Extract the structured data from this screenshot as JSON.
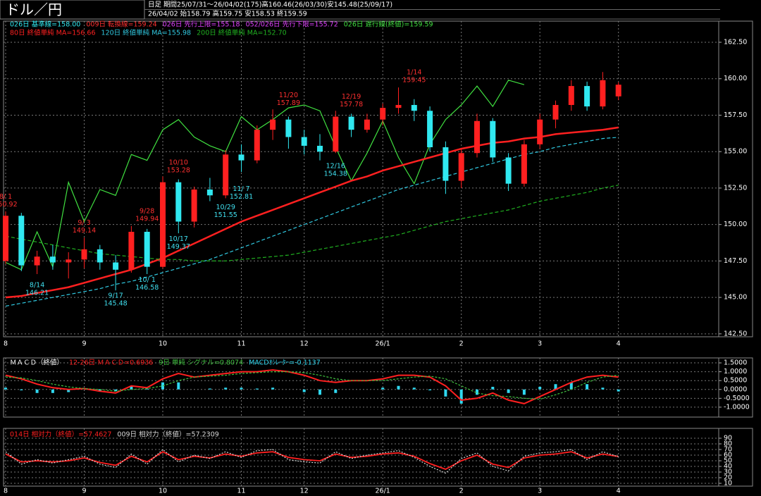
{
  "header": {
    "title": "ドル／円",
    "period": "日足  期間25/07/31～26/04/02(175)高160.46(26/03/30)安145.48(25/09/17)",
    "latest": "26/04/02  始158.79 高159.75 安158.53 終159.59"
  },
  "chart_data": [
    {
      "type": "candlestick",
      "up_color": "#ff2020",
      "down_color": "#30e8f0",
      "categories": [
        "8",
        null,
        null,
        null,
        null,
        "9",
        null,
        null,
        null,
        null,
        "10",
        null,
        null,
        null,
        null,
        "11",
        null,
        null,
        null,
        "12",
        null,
        null,
        null,
        null,
        "26/1",
        null,
        null,
        null,
        null,
        "2",
        null,
        null,
        null,
        null,
        "3",
        null,
        null,
        null,
        null,
        "4"
      ],
      "open": [
        147.5,
        150.6,
        147.2,
        147.8,
        147.4,
        147.6,
        148.3,
        147.4,
        146.9,
        149.5,
        147.1,
        152.9,
        150.2,
        152.4,
        152.0,
        154.8,
        154.4,
        156.5,
        157.2,
        156.0,
        155.4,
        155.0,
        157.4,
        156.5,
        157.2,
        158.0,
        158.2,
        157.8,
        155.3,
        153.0,
        154.9,
        157.1,
        154.6,
        152.8,
        155.5,
        157.2,
        158.2,
        159.5,
        158.1,
        158.79
      ],
      "high": [
        150.9,
        150.8,
        148.2,
        148.6,
        148.1,
        149.1,
        148.6,
        147.9,
        149.9,
        149.7,
        153.3,
        153.1,
        152.6,
        153.2,
        155.1,
        155.5,
        156.8,
        157.9,
        157.4,
        156.5,
        156.2,
        157.8,
        157.6,
        157.6,
        158.3,
        159.4,
        158.6,
        158.1,
        155.7,
        155.2,
        157.6,
        157.3,
        154.9,
        155.8,
        157.6,
        158.5,
        159.9,
        159.8,
        160.46,
        159.75
      ],
      "low": [
        147.3,
        146.8,
        146.6,
        146.9,
        146.3,
        147.0,
        146.9,
        145.48,
        146.7,
        146.6,
        147.0,
        149.4,
        149.8,
        151.6,
        151.8,
        153.6,
        154.2,
        155.8,
        155.2,
        154.8,
        154.4,
        154.9,
        156.0,
        156.3,
        156.8,
        157.6,
        157.1,
        155.0,
        152.1,
        152.5,
        154.6,
        154.3,
        152.3,
        152.6,
        155.2,
        156.6,
        157.8,
        157.8,
        157.9,
        158.53
      ],
      "close": [
        150.6,
        147.2,
        147.8,
        147.4,
        147.6,
        148.3,
        147.4,
        146.9,
        149.5,
        147.1,
        152.9,
        150.2,
        152.4,
        152.0,
        154.8,
        154.4,
        156.5,
        157.2,
        156.0,
        155.4,
        155.0,
        157.4,
        156.5,
        157.2,
        158.0,
        158.2,
        157.8,
        155.3,
        153.0,
        154.9,
        157.1,
        154.6,
        152.8,
        155.5,
        157.2,
        158.2,
        159.5,
        158.1,
        159.9,
        159.59
      ],
      "indicator_labels": [
        {
          "label": "026日 基準線=158.00",
          "color": "#30e8f0"
        },
        {
          "label": "009日 転換線=159.24",
          "color": "#ff3030"
        },
        {
          "label": "026日 先行上限=155.18",
          "color": "#e040ff"
        },
        {
          "label": "052/026日 先行下限=155.72",
          "color": "#e040ff"
        }
      ],
      "series": [
        {
          "name": "026日 遅行線(終値)=159.59",
          "color": "#40e040",
          "legend_row": 1,
          "values": [
            147.4,
            146.9,
            149.5,
            147.1,
            152.9,
            150.2,
            152.4,
            152.0,
            154.8,
            154.4,
            156.5,
            157.2,
            156.0,
            155.4,
            155.0,
            157.4,
            156.5,
            157.2,
            158.0,
            158.2,
            157.8,
            155.3,
            153.0,
            154.9,
            157.1,
            154.6,
            152.8,
            155.5,
            157.2,
            158.2,
            159.5,
            158.1,
            159.9,
            159.59,
            null,
            null,
            null,
            null,
            null,
            null
          ]
        },
        {
          "name": "80日 終値単純 MA=156.66",
          "color": "#ff2020",
          "width": 2.5,
          "legend_row": 2,
          "values": [
            145.0,
            145.1,
            145.3,
            145.5,
            145.7,
            146.0,
            146.3,
            146.6,
            146.9,
            147.3,
            147.7,
            148.2,
            148.7,
            149.2,
            149.7,
            150.2,
            150.6,
            151.0,
            151.4,
            151.8,
            152.2,
            152.6,
            153.0,
            153.3,
            153.7,
            154.0,
            154.3,
            154.6,
            154.9,
            155.2,
            155.4,
            155.6,
            155.7,
            155.9,
            156.0,
            156.2,
            156.3,
            156.4,
            156.5,
            156.66
          ]
        },
        {
          "name": "120日 終値単純 MA=155.98",
          "color": "#30c8e0",
          "dash": "5,3",
          "legend_row": 2,
          "values": [
            144.4,
            144.6,
            144.8,
            145.0,
            145.2,
            145.4,
            145.6,
            145.9,
            146.1,
            146.4,
            146.7,
            147.0,
            147.3,
            147.6,
            148.0,
            148.4,
            148.8,
            149.2,
            149.6,
            150.0,
            150.4,
            150.8,
            151.2,
            151.6,
            152.0,
            152.4,
            152.7,
            153.0,
            153.3,
            153.6,
            153.9,
            154.2,
            154.5,
            154.8,
            155.0,
            155.3,
            155.5,
            155.7,
            155.9,
            155.98
          ]
        },
        {
          "name": "200日 終値単純 MA=152.70",
          "color": "#20b020",
          "dash": "5,3",
          "legend_row": 2,
          "values": [
            149.2,
            149.0,
            148.8,
            148.6,
            148.4,
            148.2,
            148.0,
            147.9,
            147.8,
            147.7,
            147.6,
            147.6,
            147.5,
            147.5,
            147.5,
            147.6,
            147.7,
            147.8,
            147.9,
            148.1,
            148.3,
            148.5,
            148.7,
            148.9,
            149.1,
            149.3,
            149.6,
            149.9,
            150.2,
            150.4,
            150.6,
            150.8,
            151.0,
            151.3,
            151.6,
            151.8,
            152.0,
            152.2,
            152.5,
            152.7
          ]
        }
      ],
      "high_labels": {
        "color": "#ff3030",
        "items": [
          {
            "date": "8/ 1",
            "value": 150.92
          },
          {
            "date": "9/ 3",
            "value": 149.14
          },
          {
            "date": "9/28",
            "value": 149.94
          },
          {
            "date": "10/10",
            "value": 153.28
          },
          {
            "date": "11/20",
            "value": 157.89
          },
          {
            "date": "12/19",
            "value": 157.78
          },
          {
            "date": "1/14",
            "value": 159.45
          }
        ]
      },
      "low_labels": {
        "color": "#40e0f0",
        "items": [
          {
            "date": "8/14",
            "value": 146.21
          },
          {
            "date": "9/17",
            "value": 145.48
          },
          {
            "date": "10/ 1",
            "value": 146.58
          },
          {
            "date": "10/17",
            "value": 149.37
          },
          {
            "date": "10/29",
            "value": 151.55
          },
          {
            "date": "11/ 7",
            "value": 152.81
          },
          {
            "date": "12/16",
            "value": 154.38
          }
        ]
      },
      "ylim": [
        142.3,
        163.95
      ],
      "yticks": [
        {
          "value": 142.5,
          "label": "142.50"
        },
        {
          "value": 145,
          "label": "145.00"
        },
        {
          "value": 147.5,
          "label": "147.50"
        },
        {
          "value": 150,
          "label": "150.00"
        },
        {
          "value": 152.5,
          "label": "152.50"
        },
        {
          "value": 155,
          "label": "155.00"
        },
        {
          "value": 157.5,
          "label": "157.50"
        },
        {
          "value": 160,
          "label": "160.00"
        },
        {
          "value": 162.5,
          "label": "162.50"
        }
      ],
      "grid": true
    },
    {
      "type": "macd",
      "title": "ＭＡＣＤ（終値）",
      "series": [
        {
          "name": "12-26日 ＭＡＣＤ=0.6936",
          "color": "#ff2020",
          "width": 2,
          "values": [
            0.8,
            0.6,
            0.3,
            0.1,
            0.0,
            0.05,
            -0.1,
            -0.2,
            0.2,
            0.1,
            0.6,
            0.9,
            0.7,
            0.8,
            0.9,
            1.0,
            1.0,
            1.1,
            1.0,
            0.8,
            0.5,
            0.4,
            0.5,
            0.5,
            0.6,
            0.8,
            0.8,
            0.7,
            0.2,
            -0.6,
            -0.5,
            -0.2,
            -0.6,
            -0.8,
            -0.4,
            0.0,
            0.4,
            0.7,
            0.8,
            0.6936
          ]
        },
        {
          "name": "9日 単純 シグナル=0.8074",
          "color": "#40c040",
          "dash": "3,2",
          "values": [
            0.7,
            0.65,
            0.5,
            0.3,
            0.15,
            0.05,
            0.0,
            -0.1,
            0.0,
            0.05,
            0.2,
            0.5,
            0.7,
            0.75,
            0.8,
            0.9,
            0.95,
            1.0,
            1.0,
            0.95,
            0.8,
            0.6,
            0.5,
            0.5,
            0.5,
            0.6,
            0.7,
            0.75,
            0.6,
            0.2,
            -0.2,
            -0.35,
            -0.4,
            -0.5,
            -0.55,
            -0.3,
            0.0,
            0.4,
            0.7,
            0.8074
          ]
        },
        {
          "name": "MACDｵｼﾚｰﾀｰ=-0.1137",
          "color": "#30d8f0",
          "style": "bar",
          "values": [
            0.1,
            -0.05,
            -0.2,
            -0.2,
            -0.15,
            0,
            -0.1,
            -0.1,
            0.2,
            0.05,
            0.4,
            0.4,
            0,
            0.05,
            0.1,
            0.1,
            0.05,
            0.1,
            0,
            -0.15,
            -0.3,
            -0.2,
            0,
            0,
            0.1,
            0.2,
            0.1,
            -0.05,
            -0.4,
            -0.8,
            -0.3,
            0.15,
            -0.2,
            -0.3,
            0.15,
            0.3,
            0.4,
            0.3,
            0.1,
            -0.1137
          ]
        }
      ],
      "ylim": [
        -1.56,
        1.78
      ],
      "yticks": [
        {
          "value": -1,
          "label": "-1.0000"
        },
        {
          "value": -0.5,
          "label": "-0.5000"
        },
        {
          "value": 0,
          "label": "0.0000"
        },
        {
          "value": 0.5,
          "label": "0.5000"
        },
        {
          "value": 1,
          "label": "1.0000"
        },
        {
          "value": 1.5,
          "label": "1.5000"
        }
      ],
      "grid": true
    },
    {
      "type": "line",
      "categories": [
        "8",
        null,
        null,
        null,
        null,
        "9",
        null,
        null,
        null,
        null,
        "10",
        null,
        null,
        null,
        null,
        "11",
        null,
        null,
        null,
        "12",
        null,
        null,
        null,
        null,
        "26/1",
        null,
        null,
        null,
        null,
        "2",
        null,
        null,
        null,
        null,
        "3",
        null,
        null,
        null,
        null,
        "4"
      ],
      "series": [
        {
          "name": "014日 相対力（終値）=57.4627",
          "color": "#ff2020",
          "width": 1.8,
          "values": [
            62,
            48,
            50,
            48,
            50,
            55,
            47,
            42,
            58,
            48,
            66,
            52,
            58,
            55,
            62,
            58,
            64,
            66,
            56,
            52,
            50,
            62,
            56,
            58,
            62,
            64,
            58,
            45,
            35,
            50,
            60,
            44,
            38,
            55,
            60,
            62,
            66,
            55,
            62,
            57.4627
          ]
        },
        {
          "name": "009日 相対力（終値）=57.2309",
          "color": "#d8d8d8",
          "dash": "2,2",
          "values": [
            66,
            44,
            52,
            46,
            52,
            58,
            44,
            38,
            62,
            44,
            70,
            48,
            60,
            54,
            66,
            56,
            68,
            70,
            52,
            48,
            46,
            66,
            54,
            60,
            64,
            68,
            56,
            40,
            28,
            54,
            64,
            40,
            32,
            58,
            64,
            66,
            70,
            52,
            66,
            57.2309
          ]
        }
      ],
      "ylim": [
        5,
        107.5
      ],
      "yticks": [
        10,
        20,
        30,
        40,
        50,
        60,
        70,
        80,
        90
      ],
      "grid": true
    }
  ]
}
